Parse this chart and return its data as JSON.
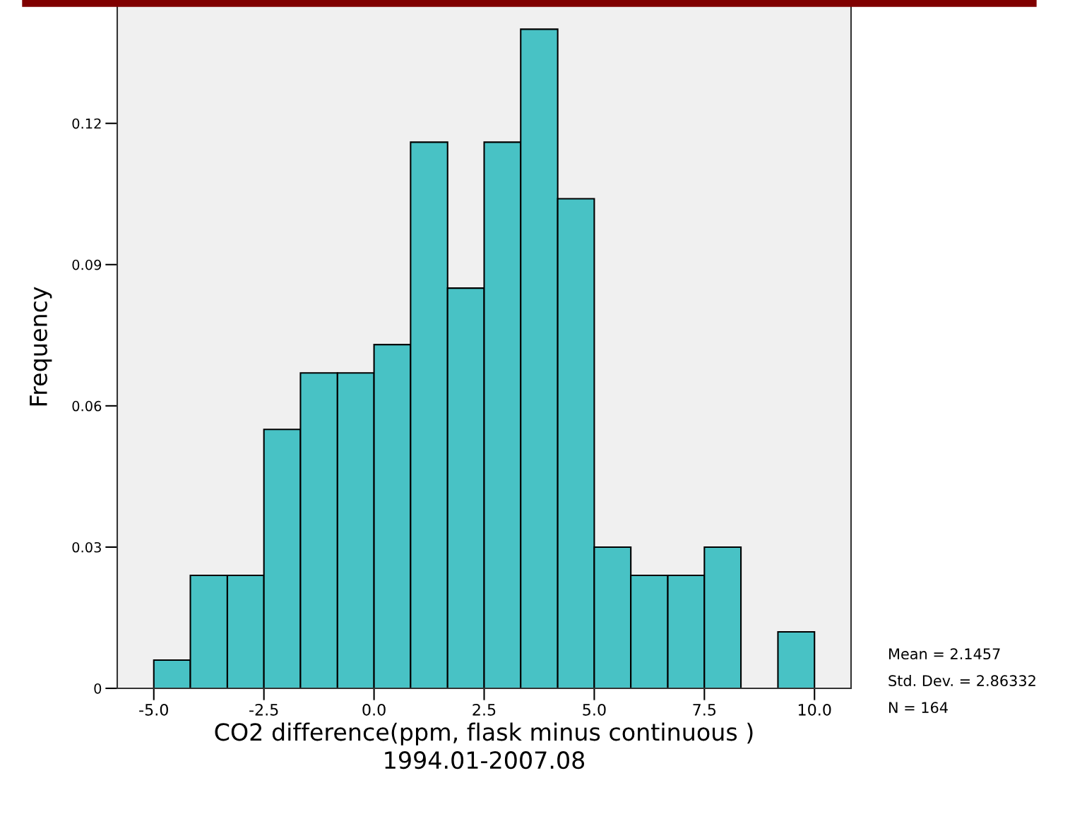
{
  "chart_data": {
    "type": "histogram",
    "xlabel": "CO2 difference(ppm, flask minus continuous )\n1994.01-2007.08",
    "ylabel": "Frequency",
    "bins": [
      -5,
      -4.17,
      -3.33,
      -2.5,
      -1.67,
      -0.83,
      0,
      0.83,
      1.67,
      2.5,
      3.33,
      4.17,
      5,
      5.83,
      6.67,
      7.5,
      8.33,
      9.17,
      10
    ],
    "values": [
      0.006,
      0.024,
      0.024,
      0.055,
      0.067,
      0.067,
      0.073,
      0.116,
      0.085,
      0.116,
      0.14,
      0.104,
      0.03,
      0.024,
      0.024,
      0.03,
      0,
      0.012
    ],
    "color": "#48c2c5",
    "xlim": [
      -5.83,
      10.83
    ],
    "xticks": [
      {
        "value": -5,
        "label": "-5.0"
      },
      {
        "value": -2.5,
        "label": "-2.5"
      },
      {
        "value": 0,
        "label": "0.0"
      },
      {
        "value": 2.5,
        "label": "2.5"
      },
      {
        "value": 5,
        "label": "5.0"
      },
      {
        "value": 7.5,
        "label": "7.5"
      },
      {
        "value": 10,
        "label": "10.0"
      }
    ],
    "ylim": [
      0,
      0.145
    ],
    "yticks": [
      0,
      0.03,
      0.06,
      0.09,
      0.12
    ],
    "grid": false,
    "annotations": [
      "Mean = 2.1457",
      "Std. Dev. = 2.86332",
      "N = 164"
    ]
  }
}
